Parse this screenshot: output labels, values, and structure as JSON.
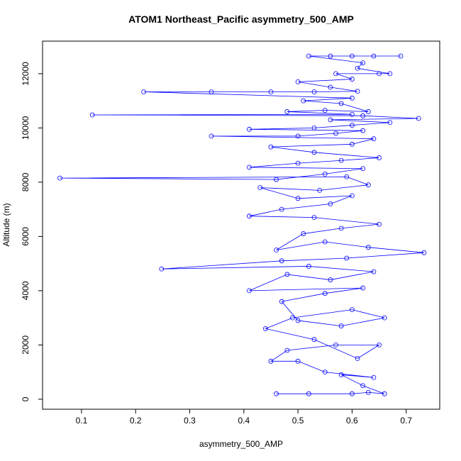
{
  "chart_data": {
    "type": "line",
    "title": "ATOM1 Northeast_Pacific asymmetry_500_AMP",
    "x_label": "asymmetry_500_AMP",
    "y_label": "Altitude (m)",
    "color": "#0000ff",
    "markers": true,
    "xlim": [
      0.028,
      0.762
    ],
    "ylim": [
      -370,
      13200
    ],
    "xticks": [
      0.1,
      0.2,
      0.3,
      0.4,
      0.5,
      0.6,
      0.7
    ],
    "yticks": [
      0,
      2000,
      4000,
      6000,
      8000,
      10000,
      12000
    ],
    "x": [
      0.46,
      0.52,
      0.6,
      0.63,
      0.66,
      0.62,
      0.58,
      0.64,
      0.55,
      0.5,
      0.45,
      0.48,
      0.57,
      0.65,
      0.61,
      0.53,
      0.44,
      0.49,
      0.6,
      0.66,
      0.58,
      0.5,
      0.47,
      0.55,
      0.62,
      0.41,
      0.48,
      0.56,
      0.64,
      0.52,
      0.248,
      0.47,
      0.59,
      0.733,
      0.63,
      0.55,
      0.46,
      0.51,
      0.58,
      0.65,
      0.53,
      0.41,
      0.47,
      0.56,
      0.6,
      0.5,
      0.43,
      0.54,
      0.63,
      0.59,
      0.06,
      0.46,
      0.55,
      0.62,
      0.41,
      0.5,
      0.58,
      0.65,
      0.53,
      0.45,
      0.6,
      0.64,
      0.34,
      0.5,
      0.57,
      0.62,
      0.41,
      0.53,
      0.6,
      0.67,
      0.56,
      0.723,
      0.62,
      0.12,
      0.6,
      0.48,
      0.55,
      0.63,
      0.58,
      0.51,
      0.6,
      0.215,
      0.34,
      0.45,
      0.53,
      0.61,
      0.56,
      0.5,
      0.6,
      0.57,
      0.65,
      0.67,
      0.61,
      0.62,
      0.52,
      0.56,
      0.6,
      0.64,
      0.69
    ],
    "values": [
      200,
      200,
      200,
      250,
      200,
      500,
      900,
      800,
      1000,
      1400,
      1400,
      1800,
      2000,
      2000,
      1500,
      2200,
      2600,
      3000,
      3300,
      3000,
      2700,
      2900,
      3600,
      3900,
      4100,
      4000,
      4600,
      4400,
      4700,
      4900,
      4800,
      5100,
      5200,
      5400,
      5600,
      5800,
      5500,
      6100,
      6300,
      6450,
      6700,
      6750,
      7000,
      7200,
      7500,
      7400,
      7800,
      7700,
      7900,
      8200,
      8150,
      8100,
      8300,
      8500,
      8550,
      8700,
      8800,
      8900,
      9100,
      9300,
      9400,
      9600,
      9700,
      9700,
      9800,
      9900,
      9950,
      10000,
      10100,
      10200,
      10300,
      10350,
      10450,
      10480,
      10500,
      10600,
      10650,
      10600,
      10900,
      11000,
      11100,
      11330,
      11330,
      11330,
      11330,
      11350,
      11500,
      11700,
      11800,
      12000,
      12000,
      12000,
      12200,
      12400,
      12650,
      12650,
      12650,
      12650,
      12650
    ]
  }
}
